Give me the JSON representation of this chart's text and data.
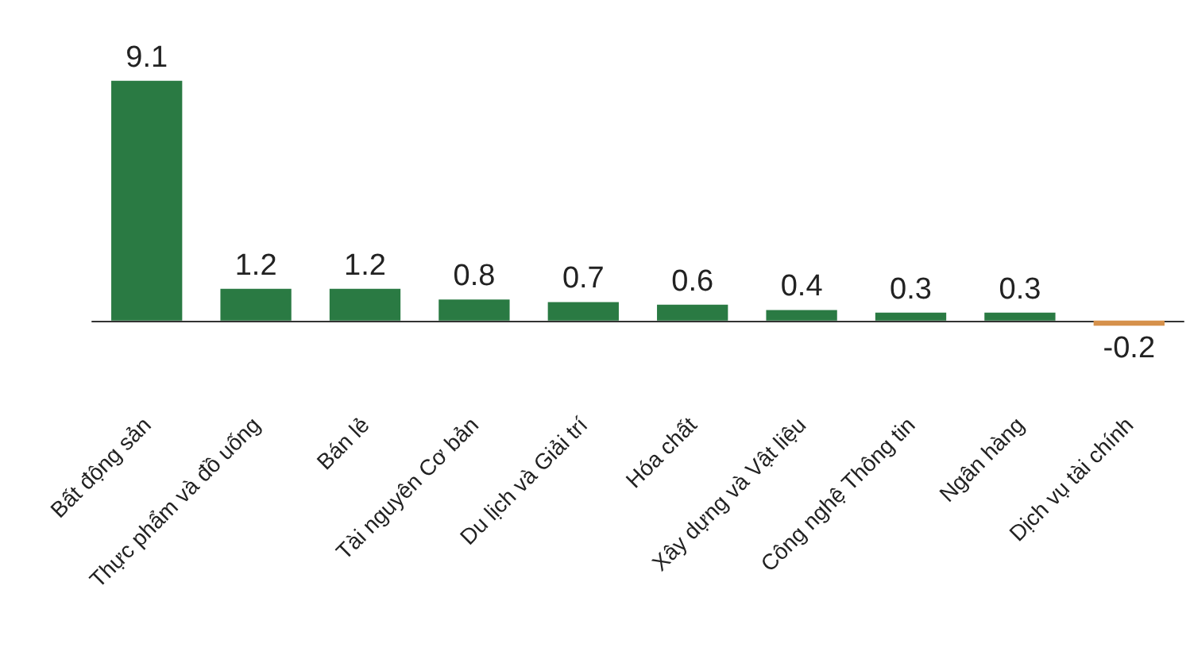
{
  "chart_data": {
    "type": "bar",
    "categories": [
      "Bất động sản",
      "Thực phẩm và đồ uống",
      "Bán lẻ",
      "Tài nguyên Cơ bản",
      "Du lịch và Giải trí",
      "Hóa chất",
      "Xây dựng và Vật liệu",
      "Công nghệ Thông tin",
      "Ngân hàng",
      "Dịch vụ tài chính"
    ],
    "values": [
      9.1,
      1.2,
      1.2,
      0.8,
      0.7,
      0.6,
      0.4,
      0.3,
      0.3,
      -0.2
    ],
    "colors": [
      "#2a7a43",
      "#2a7a43",
      "#2a7a43",
      "#2a7a43",
      "#2a7a43",
      "#2a7a43",
      "#2a7a43",
      "#2a7a43",
      "#2a7a43",
      "#d6914b"
    ],
    "data_labels": true
  }
}
